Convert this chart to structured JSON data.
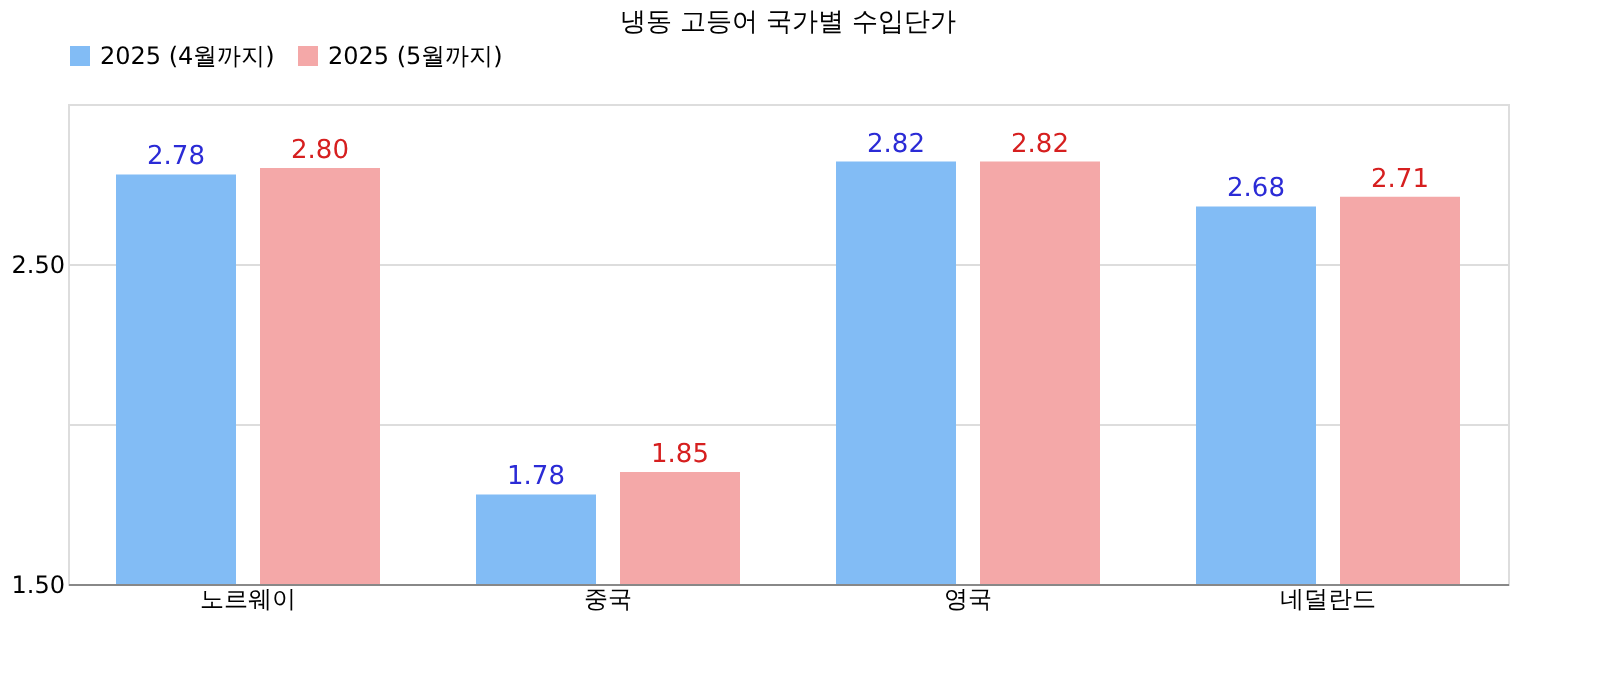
{
  "chart_data": {
    "type": "bar",
    "title": "냉동 고등어 국가별 수입단가",
    "categories": [
      "노르웨이",
      "중국",
      "영국",
      "네덜란드"
    ],
    "series": [
      {
        "name": "2025 (4월까지)",
        "color": "#82bcf5",
        "values": [
          2.78,
          1.78,
          2.82,
          2.68
        ]
      },
      {
        "name": "2025 (5월까지)",
        "color": "#f4a8a8",
        "values": [
          2.8,
          1.85,
          2.82,
          2.71
        ]
      }
    ],
    "ylim": [
      1.5,
      3.0
    ],
    "yticks": [
      {
        "value": 1.5,
        "label": "1.50"
      },
      {
        "value": 2.0,
        "label": null
      },
      {
        "value": 2.5,
        "label": "2.50"
      },
      {
        "value": 3.0,
        "label": null
      }
    ],
    "value_labels": [
      [
        "2.78",
        "1.78",
        "2.82",
        "2.68"
      ],
      [
        "2.80",
        "1.85",
        "2.82",
        "2.71"
      ]
    ],
    "grid": "y",
    "legend": "top"
  }
}
